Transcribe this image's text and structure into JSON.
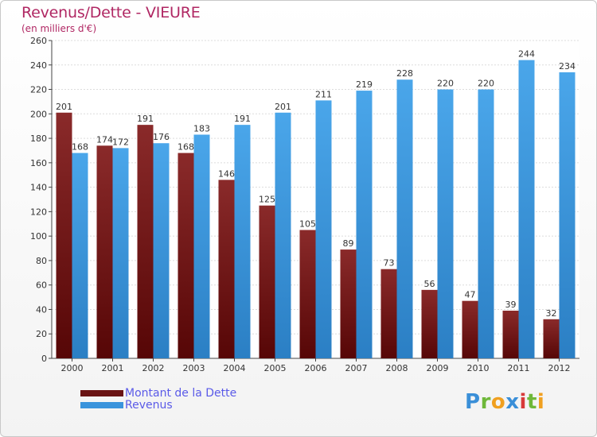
{
  "header": {
    "title": "Revenus/Dette - VIEURE",
    "subtitle": "(en milliers d'€)"
  },
  "chart_data": {
    "type": "bar",
    "title": "Revenus/Dette - VIEURE",
    "ylabel": "(en milliers d'€)",
    "xlabel": "",
    "categories": [
      "2000",
      "2001",
      "2002",
      "2003",
      "2004",
      "2005",
      "2006",
      "2007",
      "2008",
      "2009",
      "2010",
      "2011",
      "2012"
    ],
    "series": [
      {
        "name": "Montant de la Dette",
        "color": "#7a1a1a",
        "values": [
          201,
          174,
          191,
          168,
          146,
          125,
          105,
          89,
          73,
          56,
          47,
          39,
          32
        ]
      },
      {
        "name": "Revenus",
        "color": "#3a94dc",
        "values": [
          168,
          172,
          176,
          183,
          191,
          201,
          211,
          219,
          228,
          220,
          220,
          244,
          234
        ]
      }
    ],
    "ylim": [
      0,
      260
    ],
    "yticks": [
      0,
      20,
      40,
      60,
      80,
      100,
      120,
      140,
      160,
      180,
      200,
      220,
      240,
      260
    ],
    "grid": true,
    "legend": "bottom-left"
  },
  "legend": {
    "items": [
      {
        "label": "Montant de la Dette",
        "color": "#6a1414"
      },
      {
        "label": "Revenus",
        "color": "#3a94dc"
      }
    ]
  },
  "logo": {
    "text": "Proxiti"
  },
  "colors": {
    "title": "#b02763",
    "legend_text": "#5a5ae8"
  }
}
